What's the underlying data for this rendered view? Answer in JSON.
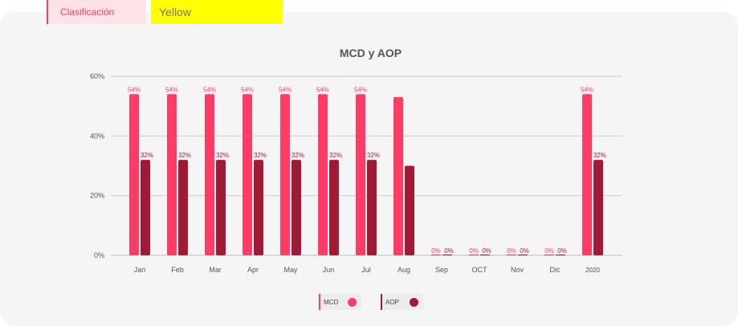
{
  "tags": {
    "label": "Clasificación",
    "value": "Yellow"
  },
  "colors": {
    "mcd": "#ff3b66",
    "aop": "#a11a35"
  },
  "chart_data": {
    "type": "bar",
    "title": "MCD y AOP",
    "categories": [
      "Jan",
      "Feb",
      "Mar",
      "Apr",
      "May",
      "Jun",
      "Jul",
      "Aug",
      "Sep",
      "OCT",
      "Nov",
      "Dic",
      "2020"
    ],
    "series": [
      {
        "name": "MCD",
        "values": [
          54,
          54,
          54,
          54,
          54,
          54,
          54,
          53,
          0,
          0,
          0,
          0,
          54
        ],
        "labels": [
          "54%",
          "54%",
          "54%",
          "54%",
          "54%",
          "54%",
          "54%",
          "",
          "0%",
          "0%",
          "0%",
          "0%",
          "54%"
        ]
      },
      {
        "name": "AOP",
        "values": [
          32,
          32,
          32,
          32,
          32,
          32,
          32,
          30,
          0,
          0,
          0,
          0,
          32
        ],
        "labels": [
          "32%",
          "32%",
          "32%",
          "32%",
          "32%",
          "32%",
          "32%",
          "",
          "0%",
          "0%",
          "0%",
          "0%",
          "32%"
        ]
      }
    ],
    "ylim": [
      0,
      60
    ],
    "yticks": [
      "0%",
      "20%",
      "40%",
      "60%"
    ],
    "ytick_values": [
      0,
      20,
      40,
      60
    ],
    "grid": true,
    "legend": "bottom-center"
  }
}
